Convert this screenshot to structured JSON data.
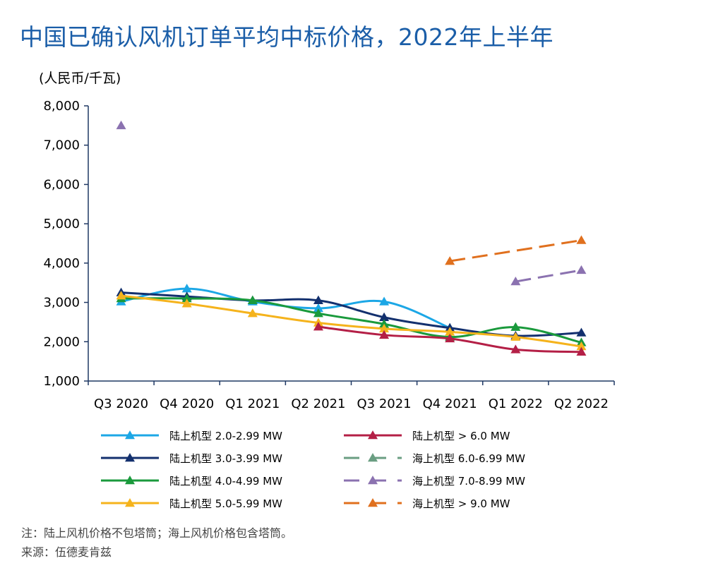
{
  "title": "中国已确认风机订单平均中标价格，2022年上半年",
  "unit": "(人民币/千瓦)",
  "footnote": {
    "note": "注：陆上风机价格不包塔筒；海上风机价格包含塔筒。",
    "source": "来源：伍德麦肯兹"
  },
  "chart_data": {
    "type": "line",
    "title": "中国已确认风机订单平均中标价格，2022年上半年",
    "ylabel": "(人民币/千瓦)",
    "xlabel": "",
    "categories": [
      "Q3 2020",
      "Q4 2020",
      "Q1 2021",
      "Q2 2021",
      "Q3 2021",
      "Q4 2021",
      "Q1 2022",
      "Q2 2022"
    ],
    "ylim": [
      1000,
      8000
    ],
    "yticks": [
      "1,000",
      "2,000",
      "3,000",
      "4,000",
      "5,000",
      "6,000",
      "7,000",
      "8,000"
    ],
    "grid": false,
    "legend_position": "bottom",
    "series": [
      {
        "name": "陆上机型 2.0-2.99 MW",
        "color": "#1ca7e6",
        "style": "smooth",
        "values": [
          3020,
          3350,
          3020,
          2850,
          3020,
          2350,
          null,
          null
        ]
      },
      {
        "name": "陆上机型 3.0-3.99 MW",
        "color": "#13306e",
        "style": "smooth",
        "values": [
          3250,
          3150,
          3050,
          3050,
          2620,
          2350,
          2150,
          2230
        ]
      },
      {
        "name": "陆上机型 4.0-4.99 MW",
        "color": "#1a9a3c",
        "style": "smooth",
        "values": [
          3100,
          3100,
          3050,
          2720,
          2450,
          2120,
          2370,
          1980
        ]
      },
      {
        "name": "陆上机型 5.0-5.99 MW",
        "color": "#f5b31c",
        "style": "smooth",
        "values": [
          3170,
          2970,
          2720,
          2480,
          2330,
          2250,
          2120,
          1880
        ]
      },
      {
        "name": "陆上机型 > 6.0 MW",
        "color": "#b41f46",
        "style": "smooth",
        "values": [
          null,
          null,
          null,
          2380,
          2170,
          2080,
          1800,
          1740
        ]
      },
      {
        "name": "海上机型 6.0-6.99 MW",
        "color": "#6a9e82",
        "style": "dashed",
        "values": [
          null,
          null,
          null,
          null,
          null,
          null,
          null,
          null
        ]
      },
      {
        "name": "海上机型 7.0-8.99 MW",
        "color": "#8b72b0",
        "style": "dashed",
        "values": [
          7500,
          null,
          null,
          null,
          null,
          null,
          3530,
          3820
        ]
      },
      {
        "name": "海上机型 > 9.0 MW",
        "color": "#e0701e",
        "style": "dashed",
        "values": [
          null,
          null,
          null,
          null,
          null,
          4050,
          null,
          4580
        ]
      }
    ]
  }
}
